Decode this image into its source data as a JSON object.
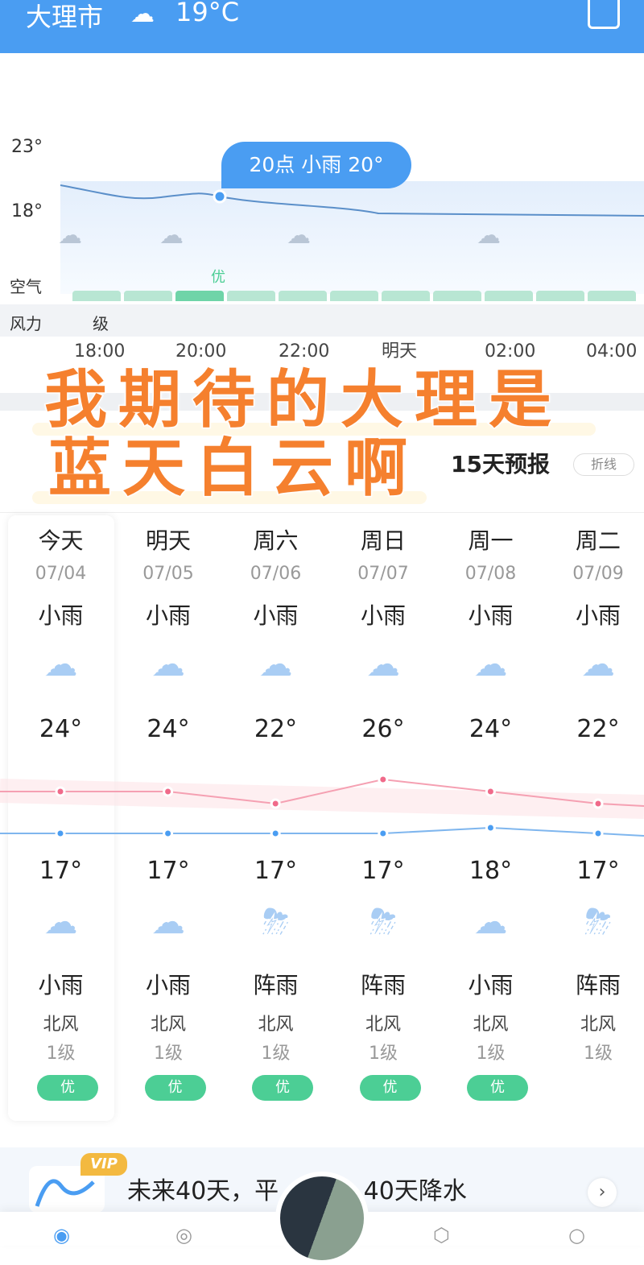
{
  "header": {
    "city": "大理市",
    "weather_icon": "cloud-rain-icon",
    "temp": "19°C",
    "share_icon": "share-icon"
  },
  "hourly": {
    "y_labels": [
      "23°",
      "18°"
    ],
    "tooltip": "20点 小雨 20°",
    "air_label": "空气",
    "air_value": "优",
    "wind_label": "风力",
    "wind_value": "级",
    "times": [
      "18:00",
      "20:00",
      "22:00",
      "明天",
      "02:00",
      "04:00"
    ]
  },
  "overlay": {
    "line1": "我期待的大理是",
    "line2": "蓝天白云啊"
  },
  "forecast": {
    "title": "15天预报",
    "toggle": "折线",
    "days": [
      {
        "weekday": "今天",
        "date": "07/04",
        "day_weather": "小雨",
        "high": "24°",
        "low": "17°",
        "night_weather": "小雨",
        "wind": "北风",
        "level": "1级",
        "aqi": "优",
        "night_icon": "cloud-rain-icon"
      },
      {
        "weekday": "明天",
        "date": "07/05",
        "day_weather": "小雨",
        "high": "24°",
        "low": "17°",
        "night_weather": "小雨",
        "wind": "北风",
        "level": "1级",
        "aqi": "优",
        "night_icon": "cloud-rain-icon"
      },
      {
        "weekday": "周六",
        "date": "07/06",
        "day_weather": "小雨",
        "high": "22°",
        "low": "17°",
        "night_weather": "阵雨",
        "wind": "北风",
        "level": "1级",
        "aqi": "优",
        "night_icon": "moon-thunder-rain-icon"
      },
      {
        "weekday": "周日",
        "date": "07/07",
        "day_weather": "小雨",
        "high": "26°",
        "low": "17°",
        "night_weather": "阵雨",
        "wind": "北风",
        "level": "1级",
        "aqi": "优",
        "night_icon": "moon-thunder-rain-icon"
      },
      {
        "weekday": "周一",
        "date": "07/08",
        "day_weather": "小雨",
        "high": "24°",
        "low": "18°",
        "night_weather": "小雨",
        "wind": "北风",
        "level": "1级",
        "aqi": "优",
        "night_icon": "cloud-rain-icon"
      },
      {
        "weekday": "周二",
        "date": "07/09",
        "day_weather": "小雨",
        "high": "22°",
        "low": "17°",
        "night_weather": "阵雨",
        "wind": "北风",
        "level": "1级",
        "aqi": "",
        "night_icon": "moon-thunder-rain-icon"
      }
    ],
    "colors": {
      "high": "#f06a8a",
      "low": "#4a9df2",
      "aqi": "#4cce95"
    }
  },
  "vip": {
    "badge": "VIP",
    "text": "未来40天，平… °C，40天降水"
  }
}
